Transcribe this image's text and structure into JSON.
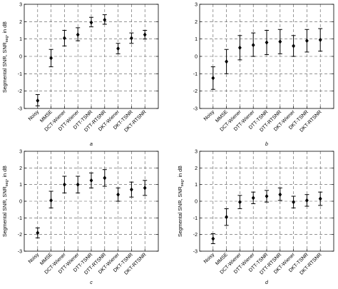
{
  "chart_data": [
    {
      "type": "errorbar",
      "panel_label": "a",
      "ylabel": "Segmental SNR, SNR",
      "ylabel_sub": "seg",
      "ylabel_suffix": ", in dB",
      "ylim": [
        -3,
        3
      ],
      "yticks": [
        -3,
        -2,
        -1,
        0,
        1,
        2,
        3
      ],
      "grid": "dashed",
      "categories": [
        "Noisy",
        "MMSE",
        "DCT-Wiener",
        "DTT-Wiener",
        "DTT-TSNR",
        "DTT-RTSNR",
        "DKT-Wiener",
        "DKT-TSNR",
        "DKT-RTSNR"
      ],
      "values": [
        -2.55,
        -0.1,
        1.05,
        1.25,
        1.95,
        2.1,
        0.45,
        1.05,
        1.25
      ],
      "lower": [
        -2.85,
        -0.6,
        0.6,
        0.9,
        1.7,
        1.85,
        0.15,
        0.75,
        1.0
      ],
      "upper": [
        -2.2,
        0.4,
        1.5,
        1.65,
        2.25,
        2.4,
        0.75,
        1.35,
        1.5
      ]
    },
    {
      "type": "errorbar",
      "panel_label": "b",
      "ylabel": "",
      "ylim": [
        -3,
        3
      ],
      "yticks": [
        -3,
        -2,
        -1,
        0,
        1,
        2,
        3
      ],
      "grid": "dashed",
      "categories": [
        "Noisy",
        "MMSE",
        "DCT-Wiener",
        "DTT-Wiener",
        "DTT-TSNR",
        "DTT-RTSNR",
        "DKT-Wiener",
        "DKT-TSNR",
        "DKT-RTSNR"
      ],
      "values": [
        -1.25,
        -0.3,
        0.5,
        0.65,
        0.8,
        0.85,
        0.6,
        0.9,
        0.95
      ],
      "lower": [
        -1.9,
        -1.0,
        -0.2,
        0.0,
        0.1,
        0.15,
        0.0,
        0.25,
        0.3
      ],
      "upper": [
        -0.6,
        0.4,
        1.2,
        1.35,
        1.5,
        1.55,
        1.2,
        1.55,
        1.6
      ]
    },
    {
      "type": "errorbar",
      "panel_label": "c",
      "ylabel": "Segmental SNR, SNR",
      "ylabel_sub": "seg",
      "ylabel_suffix": ", in dB",
      "ylim": [
        -3,
        3
      ],
      "yticks": [
        -3,
        -2,
        -1,
        0,
        1,
        2,
        3
      ],
      "grid": "dashed",
      "categories": [
        "Noisy",
        "MMSE",
        "DCT-Wiener",
        "DTT-Wiener",
        "DTT-TSNR",
        "DTT-RTSNR",
        "DKT-Wiener",
        "DKT-TSNR",
        "DKT-RTSNR"
      ],
      "values": [
        -1.9,
        0.05,
        1.0,
        1.0,
        1.25,
        1.4,
        0.4,
        0.7,
        0.8
      ],
      "lower": [
        -2.2,
        -0.4,
        0.5,
        0.5,
        0.8,
        0.9,
        0.0,
        0.25,
        0.35
      ],
      "upper": [
        -1.6,
        0.6,
        1.5,
        1.5,
        1.7,
        1.9,
        0.8,
        1.15,
        1.25
      ]
    },
    {
      "type": "errorbar",
      "panel_label": "d",
      "ylabel": "Segmental SNR, SNR",
      "ylabel_sub": "seg",
      "ylabel_suffix": ", in dB",
      "ylim": [
        -3,
        3
      ],
      "yticks": [
        -3,
        -2,
        -1,
        0,
        1,
        2,
        3
      ],
      "grid": "dashed",
      "categories": [
        "Noisy",
        "MMSE",
        "DCT-Wiener",
        "DTT-Wiener",
        "DTT-TSNR",
        "DTT-RTSNR",
        "DKT-Wiener",
        "DKT-TSNR",
        "DKT-RTSNR"
      ],
      "values": [
        -2.25,
        -0.95,
        -0.05,
        0.2,
        0.3,
        0.4,
        -0.05,
        0.05,
        0.15
      ],
      "lower": [
        -2.55,
        -1.45,
        -0.45,
        -0.15,
        -0.05,
        0.05,
        -0.4,
        -0.3,
        -0.25
      ],
      "upper": [
        -1.95,
        -0.45,
        0.35,
        0.55,
        0.65,
        0.8,
        0.3,
        0.4,
        0.55
      ]
    }
  ]
}
